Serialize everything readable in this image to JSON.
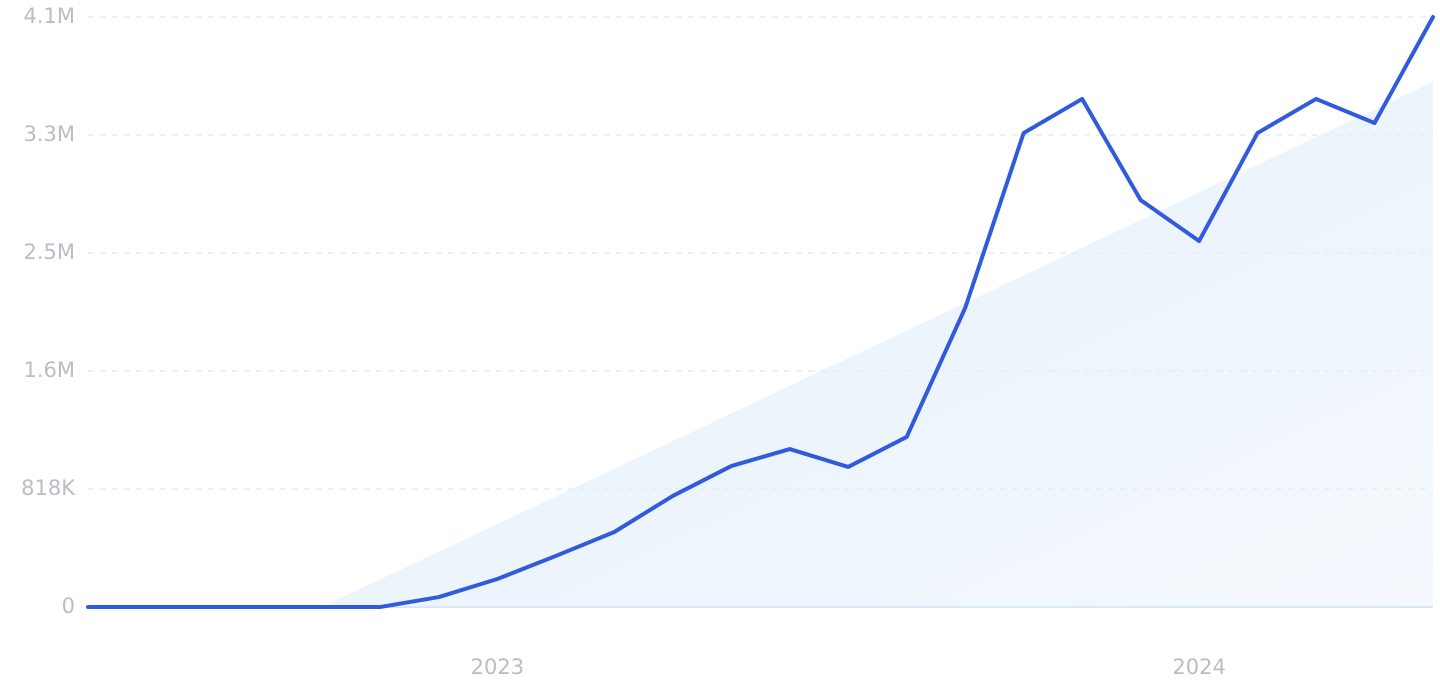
{
  "chart_data": {
    "type": "line",
    "categories": [
      null,
      null,
      null,
      null,
      null,
      null,
      null,
      "2023",
      null,
      null,
      null,
      null,
      null,
      null,
      null,
      null,
      null,
      null,
      null,
      "2024",
      null,
      null,
      null,
      null
    ],
    "series": [
      {
        "color": "#2f5bdc",
        "values": [
          0,
          0,
          0,
          0,
          0,
          0,
          69000,
          194000,
          354000,
          520000,
          770000,
          977000,
          1095000,
          971000,
          1179000,
          2073000,
          3286000,
          3522000,
          2821000,
          2537000,
          3286000,
          3522000,
          3355000,
          4090000
        ]
      },
      {
        "color": "#e3eefb",
        "values": [
          null,
          null,
          null,
          null,
          0,
          192000,
          383000,
          575000,
          766000,
          958000,
          1150000,
          1341000,
          1533000,
          1724000,
          1916000,
          2108000,
          2299000,
          2491000,
          2682000,
          2874000,
          3066000,
          3257000,
          3449000,
          3640000
        ]
      }
    ],
    "ylim": [
      0,
      4090000
    ],
    "yticks": [
      0,
      {
        "value": 818000,
        "label": "818K"
      },
      {
        "value": 1636000,
        "label": "1.6M"
      },
      {
        "value": 2454000,
        "label": "2.5M"
      },
      {
        "value": 3272000,
        "label": "3.3M"
      },
      {
        "value": 4090000,
        "label": "4.1M"
      }
    ],
    "grid": true
  }
}
